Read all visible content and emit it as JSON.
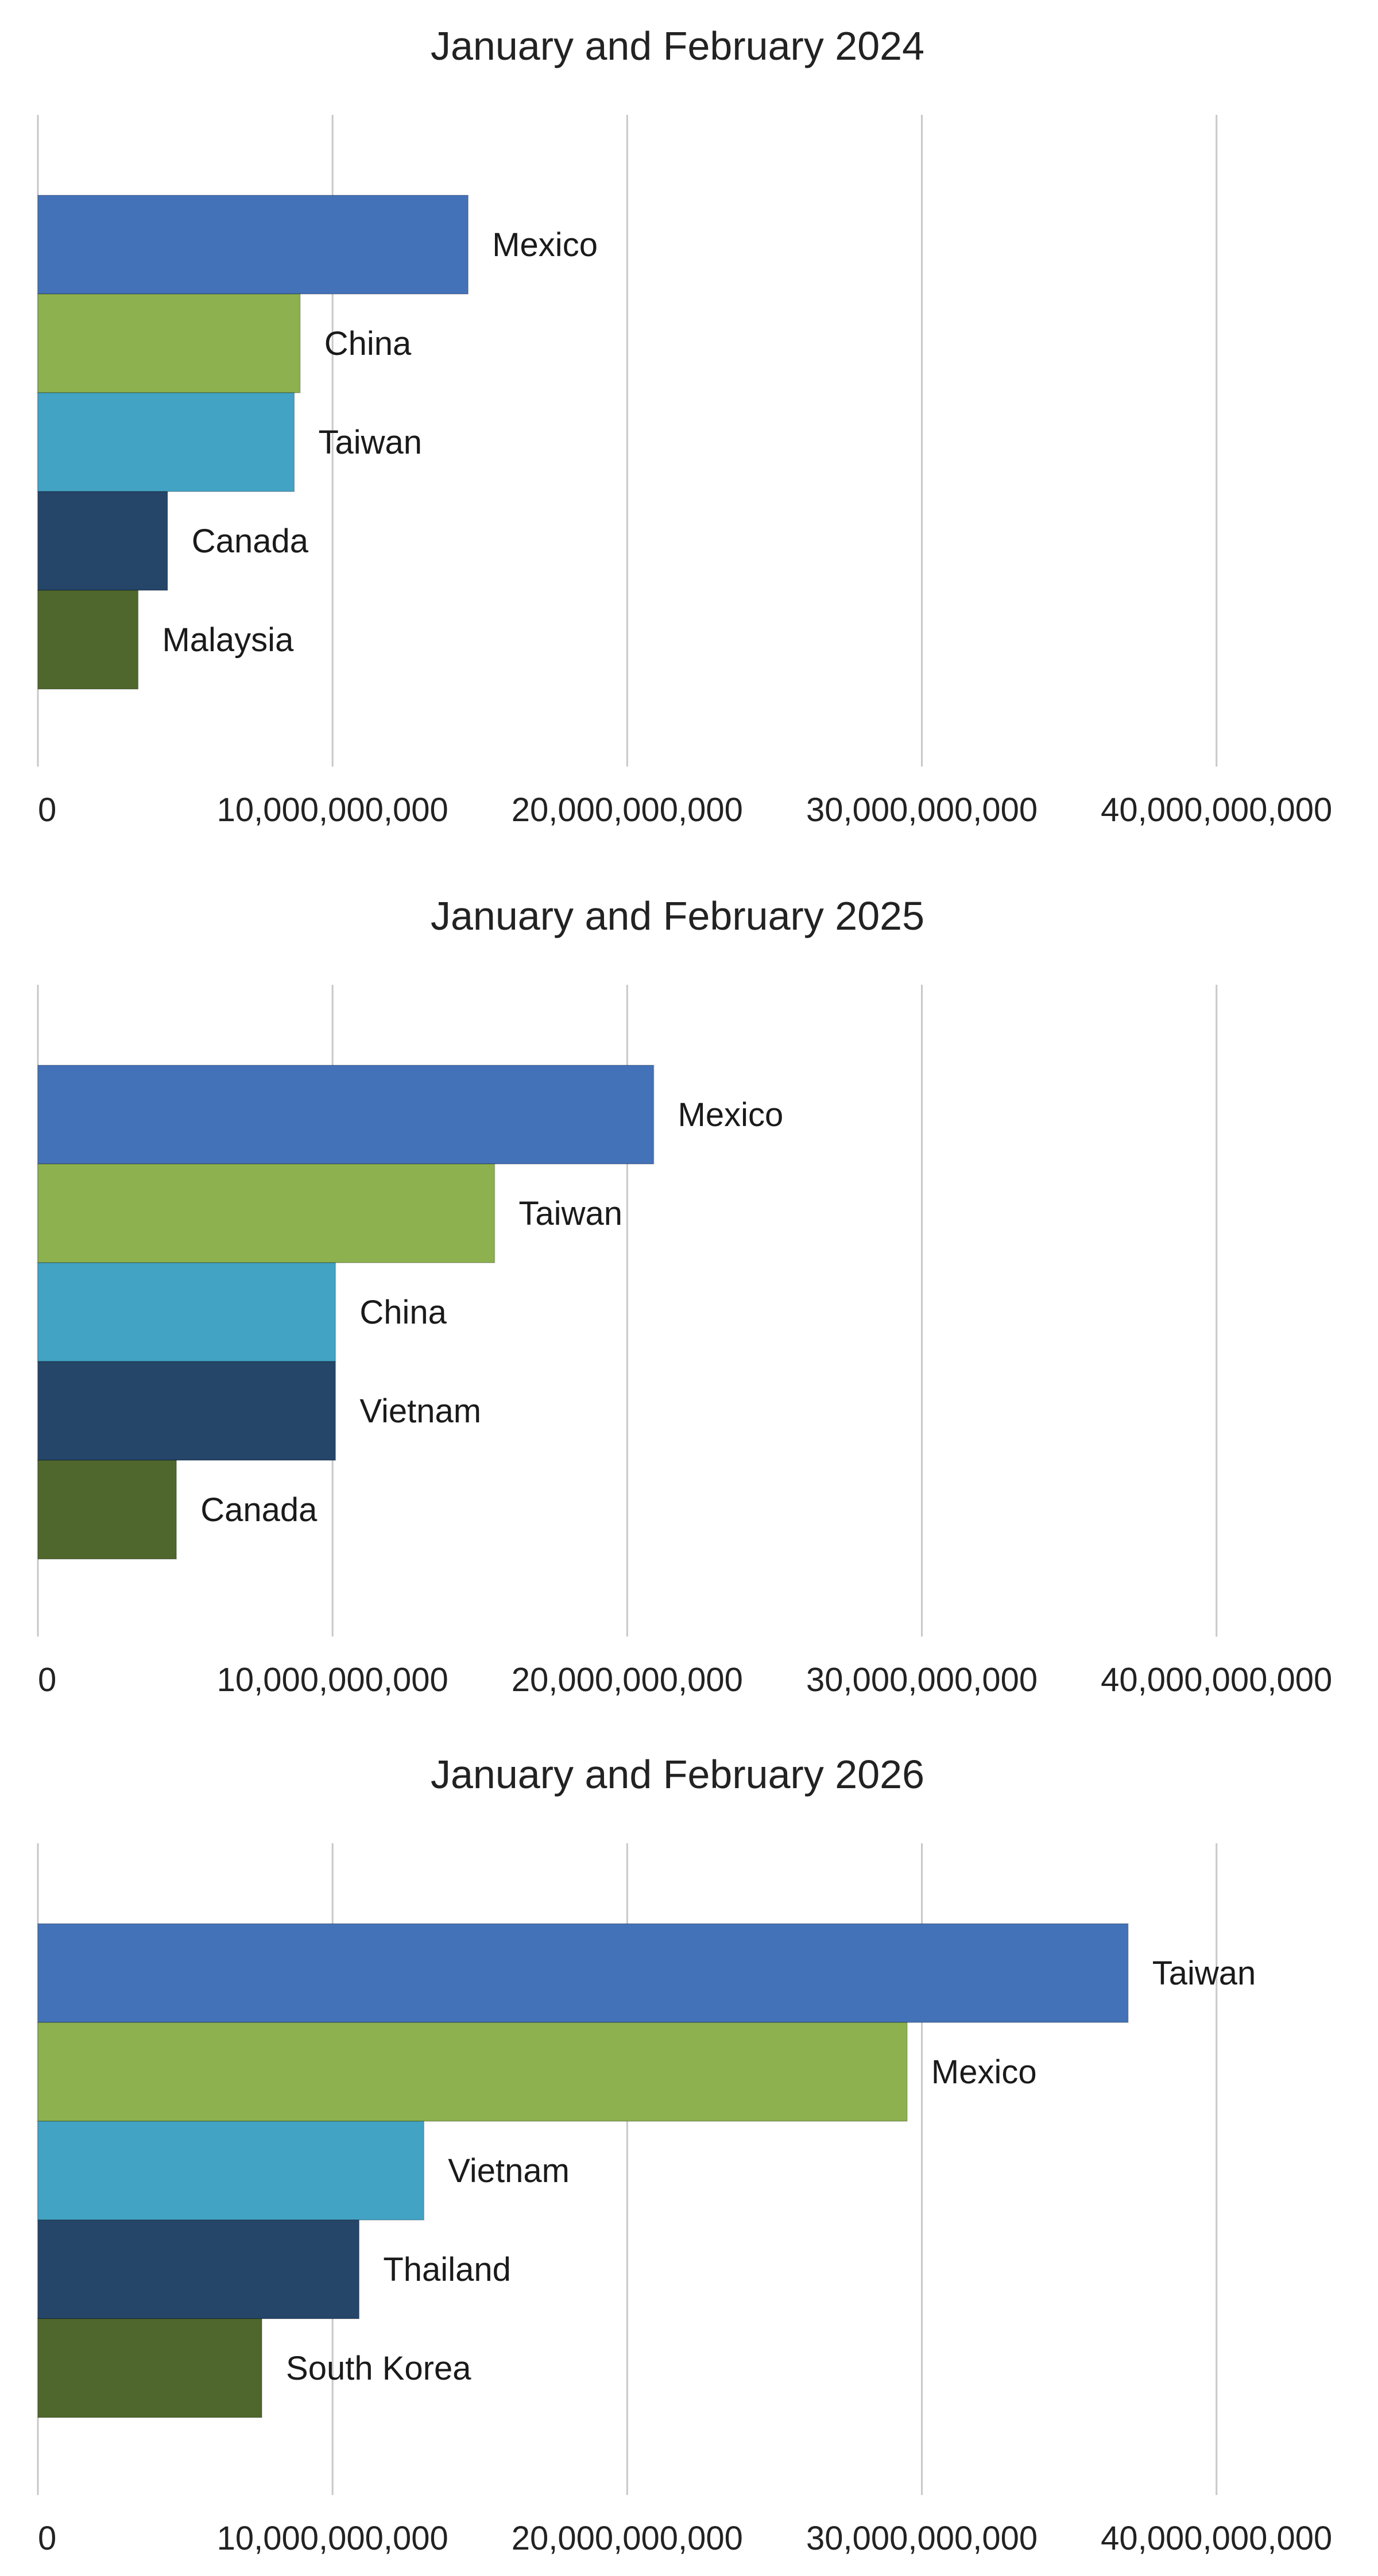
{
  "chart_data": [
    {
      "type": "bar",
      "orientation": "horizontal",
      "title": "January and February 2024",
      "xlabel": "",
      "ylabel": "",
      "xlim": [
        0,
        44000000000
      ],
      "ticks": [
        0,
        10000000000,
        20000000000,
        30000000000,
        40000000000
      ],
      "tick_labels": [
        "0",
        "10,000,000,000",
        "20,000,000,000",
        "30,000,000,000",
        "40,000,000,000"
      ],
      "grid": true,
      "categories": [
        "Mexico",
        "China",
        "Taiwan",
        "Canada",
        "Malaysia"
      ],
      "values": [
        14600000000,
        8900000000,
        8700000000,
        4400000000,
        3400000000
      ],
      "colors": [
        "#4472b8",
        "#8db14f",
        "#43a3c4",
        "#254569",
        "#4f672c"
      ]
    },
    {
      "type": "bar",
      "orientation": "horizontal",
      "title": "January and February 2025",
      "xlabel": "",
      "ylabel": "",
      "xlim": [
        0,
        44000000000
      ],
      "ticks": [
        0,
        10000000000,
        20000000000,
        30000000000,
        40000000000
      ],
      "tick_labels": [
        "0",
        "10,000,000,000",
        "20,000,000,000",
        "30,000,000,000",
        "40,000,000,000"
      ],
      "grid": true,
      "categories": [
        "Mexico",
        "Taiwan",
        "China",
        "Vietnam",
        "Canada"
      ],
      "values": [
        20900000000,
        15500000000,
        10100000000,
        10100000000,
        4700000000
      ],
      "colors": [
        "#4472b8",
        "#8db14f",
        "#43a3c4",
        "#254569",
        "#4f672c"
      ]
    },
    {
      "type": "bar",
      "orientation": "horizontal",
      "title": "January and February 2026",
      "xlabel": "",
      "ylabel": "",
      "xlim": [
        0,
        44000000000
      ],
      "ticks": [
        0,
        10000000000,
        20000000000,
        30000000000,
        40000000000
      ],
      "tick_labels": [
        "0",
        "10,000,000,000",
        "20,000,000,000",
        "30,000,000,000",
        "40,000,000,000"
      ],
      "grid": true,
      "categories": [
        "Taiwan",
        "Mexico",
        "Vietnam",
        "Thailand",
        "South Korea"
      ],
      "values": [
        37000000000,
        29500000000,
        13100000000,
        10900000000,
        7600000000
      ],
      "colors": [
        "#4472b8",
        "#8db14f",
        "#43a3c4",
        "#254569",
        "#4f672c"
      ]
    }
  ]
}
